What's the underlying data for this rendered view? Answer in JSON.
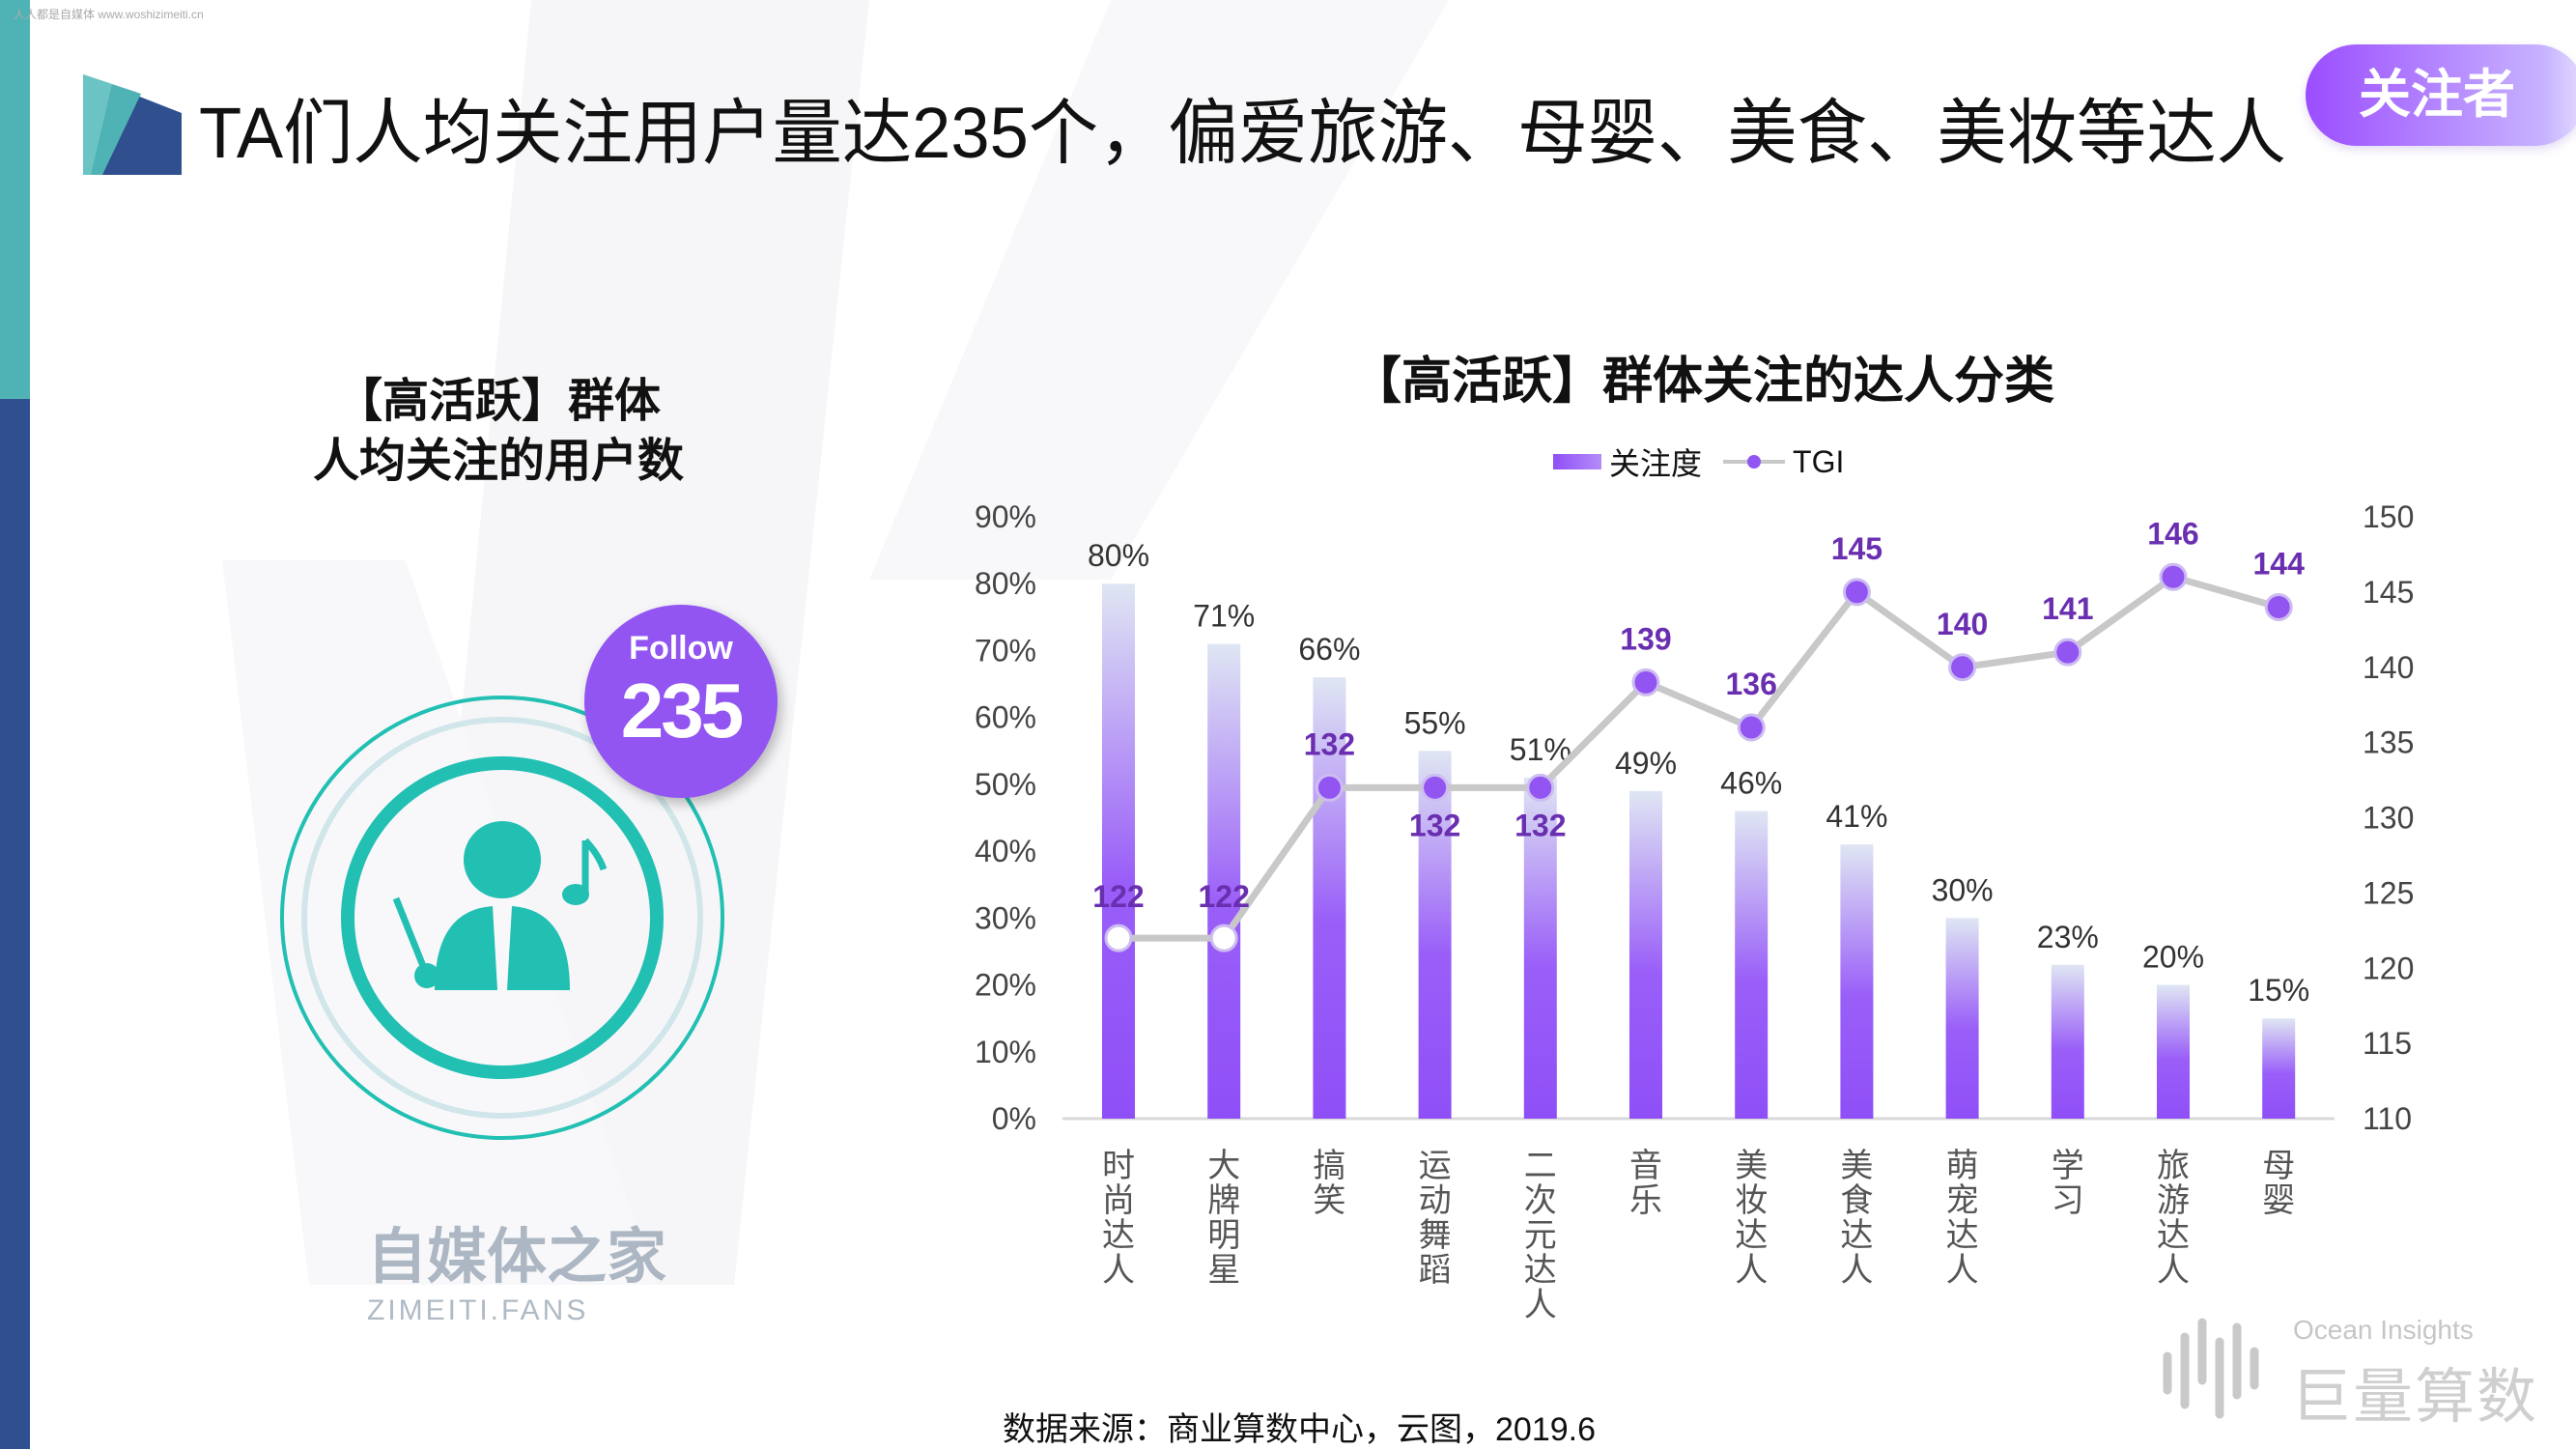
{
  "watermark_top": "人人都是自媒体 www.woshizimeiti.cn",
  "title": "TA们人均关注用户量达235个，偏爱旅游、母婴、美食、美妆等达人",
  "badge": "关注者",
  "left_panel": {
    "subtitle_line1": "【高活跃】群体",
    "subtitle_line2": "人均关注的用户数",
    "follow_label": "Follow",
    "follow_value": "235",
    "icon": "person-with-music-note-icon"
  },
  "watermark_center": {
    "cn": "自媒体之家",
    "en": "ZIMEITI.FANS"
  },
  "source": "数据来源：商业算数中心，云图，2019.6",
  "brand": {
    "en": "Ocean Insights",
    "cn": "巨量算数"
  },
  "colors": {
    "bar_top": "#dfe6f3",
    "bar_bottom": "#8f4ff7",
    "line": "#c8c8c8",
    "marker": "#9255f2",
    "tgi_label": "#6a2fb0",
    "teal": "#22bfb3"
  },
  "chart_data": {
    "type": "bar",
    "title": "【高活跃】群体关注的达人分类",
    "categories": [
      "时尚达人",
      "大牌明星",
      "搞笑",
      "运动舞蹈",
      "二次元达人",
      "音乐",
      "美妆达人",
      "美食达人",
      "萌宠达人",
      "学习",
      "旅游达人",
      "母婴"
    ],
    "series": [
      {
        "name": "关注度",
        "type": "bar",
        "axis": "left",
        "values": [
          80,
          71,
          66,
          55,
          51,
          49,
          46,
          41,
          30,
          23,
          20,
          15
        ],
        "labels": [
          "80%",
          "71%",
          "66%",
          "55%",
          "51%",
          "49%",
          "46%",
          "41%",
          "30%",
          "23%",
          "20%",
          "15%"
        ]
      },
      {
        "name": "TGI",
        "type": "line",
        "axis": "right",
        "values": [
          122,
          122,
          132,
          132,
          132,
          139,
          136,
          145,
          140,
          141,
          146,
          144
        ]
      }
    ],
    "y_left": {
      "range": [
        0,
        90
      ],
      "ticks": [
        "0%",
        "10%",
        "20%",
        "30%",
        "40%",
        "50%",
        "60%",
        "70%",
        "80%",
        "90%"
      ]
    },
    "y_right": {
      "range": [
        110,
        150
      ],
      "ticks": [
        "110",
        "115",
        "120",
        "125",
        "130",
        "135",
        "140",
        "145",
        "150"
      ]
    },
    "legend_placement": "top",
    "grid": false
  }
}
